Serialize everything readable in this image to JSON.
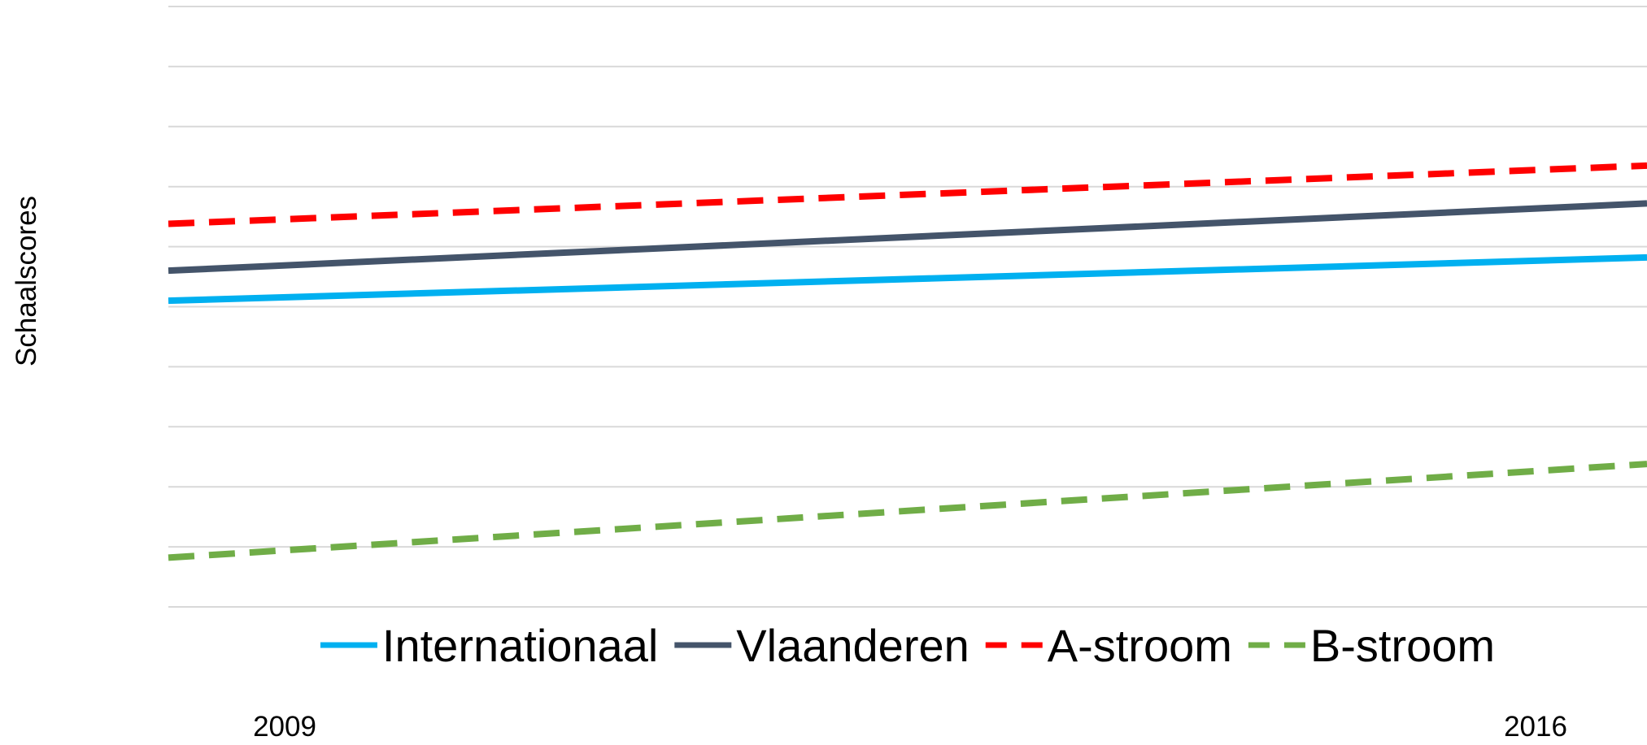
{
  "chart_data": {
    "type": "line",
    "title": "",
    "xlabel": "",
    "ylabel": "Schaalscores",
    "x": [
      "2009",
      "2016"
    ],
    "ylim": [
      0,
      10
    ],
    "grid": true,
    "legend_position": "bottom-inside",
    "series": [
      {
        "name": "Internationaal",
        "values": [
          5.1,
          5.82
        ],
        "color": "#00b0f0",
        "dash": "solid"
      },
      {
        "name": "Vlaanderen",
        "values": [
          5.6,
          6.72
        ],
        "color": "#44546a",
        "dash": "solid"
      },
      {
        "name": "A-stroom",
        "values": [
          6.38,
          7.35
        ],
        "color": "#ff0000",
        "dash": "dash"
      },
      {
        "name": "B-stroom",
        "values": [
          0.82,
          2.38
        ],
        "color": "#70ad47",
        "dash": "dash"
      }
    ]
  }
}
